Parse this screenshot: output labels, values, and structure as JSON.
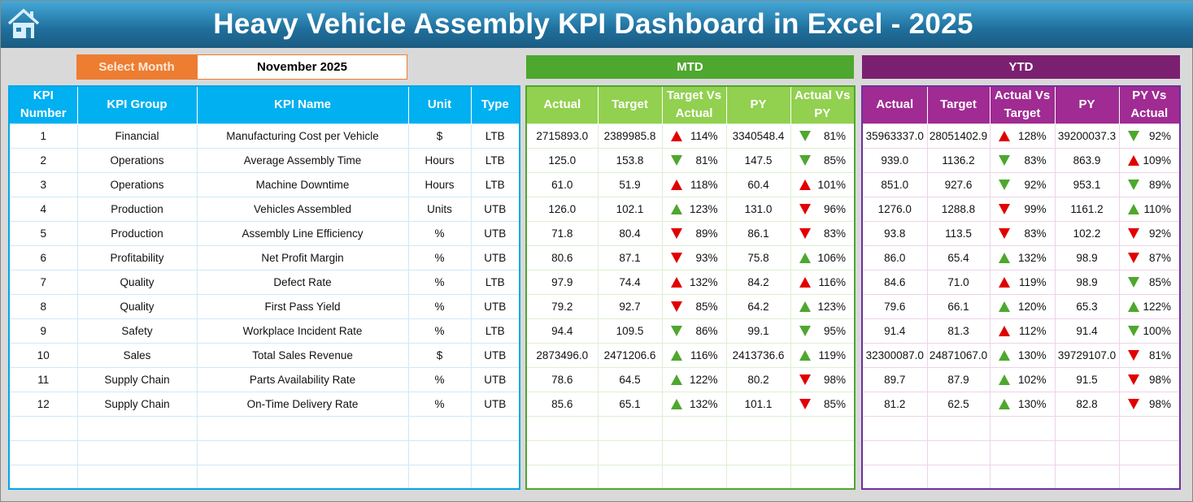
{
  "title": "Heavy Vehicle Assembly KPI Dashboard in Excel - 2025",
  "select_month_label": "Select Month",
  "selected_month": "November 2025",
  "mtd_label": "MTD",
  "ytd_label": "YTD",
  "colors": {
    "up_down_good": "#4ea72e",
    "bad": "#e00000",
    "header_blue": "#00b0f0",
    "mtd_green": "#4ea72e",
    "ytd_purple": "#7b2070"
  },
  "left_headers": [
    "KPI Number",
    "KPI Group",
    "KPI Name",
    "Unit",
    "Type"
  ],
  "mtd_headers": [
    "Actual",
    "Target",
    "Target Vs Actual",
    "PY",
    "Actual Vs PY"
  ],
  "ytd_headers": [
    "Actual",
    "Target",
    "Actual Vs Target",
    "PY",
    "PY Vs Actual"
  ],
  "rows": [
    {
      "num": "1",
      "group": "Financial",
      "name": "Manufacturing Cost per Vehicle",
      "unit": "$",
      "type": "LTB",
      "mtd": {
        "actual": "2715893.0",
        "target": "2389985.8",
        "tva": {
          "pct": "114%",
          "dir": "up",
          "color": "red"
        },
        "py": "3340548.4",
        "avp": {
          "pct": "81%",
          "dir": "down",
          "color": "green"
        }
      },
      "ytd": {
        "actual": "35963337.0",
        "target": "28051402.9",
        "avt": {
          "pct": "128%",
          "dir": "up",
          "color": "red"
        },
        "py": "39200037.3",
        "pva": {
          "pct": "92%",
          "dir": "down",
          "color": "green"
        }
      }
    },
    {
      "num": "2",
      "group": "Operations",
      "name": "Average Assembly Time",
      "unit": "Hours",
      "type": "LTB",
      "mtd": {
        "actual": "125.0",
        "target": "153.8",
        "tva": {
          "pct": "81%",
          "dir": "down",
          "color": "green"
        },
        "py": "147.5",
        "avp": {
          "pct": "85%",
          "dir": "down",
          "color": "green"
        }
      },
      "ytd": {
        "actual": "939.0",
        "target": "1136.2",
        "avt": {
          "pct": "83%",
          "dir": "down",
          "color": "green"
        },
        "py": "863.9",
        "pva": {
          "pct": "109%",
          "dir": "up",
          "color": "red"
        }
      }
    },
    {
      "num": "3",
      "group": "Operations",
      "name": "Machine Downtime",
      "unit": "Hours",
      "type": "LTB",
      "mtd": {
        "actual": "61.0",
        "target": "51.9",
        "tva": {
          "pct": "118%",
          "dir": "up",
          "color": "red"
        },
        "py": "60.4",
        "avp": {
          "pct": "101%",
          "dir": "up",
          "color": "red"
        }
      },
      "ytd": {
        "actual": "851.0",
        "target": "927.6",
        "avt": {
          "pct": "92%",
          "dir": "down",
          "color": "green"
        },
        "py": "953.1",
        "pva": {
          "pct": "89%",
          "dir": "down",
          "color": "green"
        }
      }
    },
    {
      "num": "4",
      "group": "Production",
      "name": "Vehicles Assembled",
      "unit": "Units",
      "type": "UTB",
      "mtd": {
        "actual": "126.0",
        "target": "102.1",
        "tva": {
          "pct": "123%",
          "dir": "up",
          "color": "green"
        },
        "py": "131.0",
        "avp": {
          "pct": "96%",
          "dir": "down",
          "color": "red"
        }
      },
      "ytd": {
        "actual": "1276.0",
        "target": "1288.8",
        "avt": {
          "pct": "99%",
          "dir": "down",
          "color": "red"
        },
        "py": "1161.2",
        "pva": {
          "pct": "110%",
          "dir": "up",
          "color": "green"
        }
      }
    },
    {
      "num": "5",
      "group": "Production",
      "name": "Assembly Line Efficiency",
      "unit": "%",
      "type": "UTB",
      "mtd": {
        "actual": "71.8",
        "target": "80.4",
        "tva": {
          "pct": "89%",
          "dir": "down",
          "color": "red"
        },
        "py": "86.1",
        "avp": {
          "pct": "83%",
          "dir": "down",
          "color": "red"
        }
      },
      "ytd": {
        "actual": "93.8",
        "target": "113.5",
        "avt": {
          "pct": "83%",
          "dir": "down",
          "color": "red"
        },
        "py": "102.2",
        "pva": {
          "pct": "92%",
          "dir": "down",
          "color": "red"
        }
      }
    },
    {
      "num": "6",
      "group": "Profitability",
      "name": "Net Profit Margin",
      "unit": "%",
      "type": "UTB",
      "mtd": {
        "actual": "80.6",
        "target": "87.1",
        "tva": {
          "pct": "93%",
          "dir": "down",
          "color": "red"
        },
        "py": "75.8",
        "avp": {
          "pct": "106%",
          "dir": "up",
          "color": "green"
        }
      },
      "ytd": {
        "actual": "86.0",
        "target": "65.4",
        "avt": {
          "pct": "132%",
          "dir": "up",
          "color": "green"
        },
        "py": "98.9",
        "pva": {
          "pct": "87%",
          "dir": "down",
          "color": "red"
        }
      }
    },
    {
      "num": "7",
      "group": "Quality",
      "name": "Defect Rate",
      "unit": "%",
      "type": "LTB",
      "mtd": {
        "actual": "97.9",
        "target": "74.4",
        "tva": {
          "pct": "132%",
          "dir": "up",
          "color": "red"
        },
        "py": "84.2",
        "avp": {
          "pct": "116%",
          "dir": "up",
          "color": "red"
        }
      },
      "ytd": {
        "actual": "84.6",
        "target": "71.0",
        "avt": {
          "pct": "119%",
          "dir": "up",
          "color": "red"
        },
        "py": "98.9",
        "pva": {
          "pct": "85%",
          "dir": "down",
          "color": "green"
        }
      }
    },
    {
      "num": "8",
      "group": "Quality",
      "name": "First Pass Yield",
      "unit": "%",
      "type": "UTB",
      "mtd": {
        "actual": "79.2",
        "target": "92.7",
        "tva": {
          "pct": "85%",
          "dir": "down",
          "color": "red"
        },
        "py": "64.2",
        "avp": {
          "pct": "123%",
          "dir": "up",
          "color": "green"
        }
      },
      "ytd": {
        "actual": "79.6",
        "target": "66.1",
        "avt": {
          "pct": "120%",
          "dir": "up",
          "color": "green"
        },
        "py": "65.3",
        "pva": {
          "pct": "122%",
          "dir": "up",
          "color": "green"
        }
      }
    },
    {
      "num": "9",
      "group": "Safety",
      "name": "Workplace Incident Rate",
      "unit": "%",
      "type": "LTB",
      "mtd": {
        "actual": "94.4",
        "target": "109.5",
        "tva": {
          "pct": "86%",
          "dir": "down",
          "color": "green"
        },
        "py": "99.1",
        "avp": {
          "pct": "95%",
          "dir": "down",
          "color": "green"
        }
      },
      "ytd": {
        "actual": "91.4",
        "target": "81.3",
        "avt": {
          "pct": "112%",
          "dir": "up",
          "color": "red"
        },
        "py": "91.4",
        "pva": {
          "pct": "100%",
          "dir": "down",
          "color": "green"
        }
      }
    },
    {
      "num": "10",
      "group": "Sales",
      "name": "Total Sales Revenue",
      "unit": "$",
      "type": "UTB",
      "mtd": {
        "actual": "2873496.0",
        "target": "2471206.6",
        "tva": {
          "pct": "116%",
          "dir": "up",
          "color": "green"
        },
        "py": "2413736.6",
        "avp": {
          "pct": "119%",
          "dir": "up",
          "color": "green"
        }
      },
      "ytd": {
        "actual": "32300087.0",
        "target": "24871067.0",
        "avt": {
          "pct": "130%",
          "dir": "up",
          "color": "green"
        },
        "py": "39729107.0",
        "pva": {
          "pct": "81%",
          "dir": "down",
          "color": "red"
        }
      }
    },
    {
      "num": "11",
      "group": "Supply Chain",
      "name": "Parts Availability Rate",
      "unit": "%",
      "type": "UTB",
      "mtd": {
        "actual": "78.6",
        "target": "64.5",
        "tva": {
          "pct": "122%",
          "dir": "up",
          "color": "green"
        },
        "py": "80.2",
        "avp": {
          "pct": "98%",
          "dir": "down",
          "color": "red"
        }
      },
      "ytd": {
        "actual": "89.7",
        "target": "87.9",
        "avt": {
          "pct": "102%",
          "dir": "up",
          "color": "green"
        },
        "py": "91.5",
        "pva": {
          "pct": "98%",
          "dir": "down",
          "color": "red"
        }
      }
    },
    {
      "num": "12",
      "group": "Supply Chain",
      "name": "On-Time Delivery Rate",
      "unit": "%",
      "type": "UTB",
      "mtd": {
        "actual": "85.6",
        "target": "65.1",
        "tva": {
          "pct": "132%",
          "dir": "up",
          "color": "green"
        },
        "py": "101.1",
        "avp": {
          "pct": "85%",
          "dir": "down",
          "color": "red"
        }
      },
      "ytd": {
        "actual": "81.2",
        "target": "62.5",
        "avt": {
          "pct": "130%",
          "dir": "up",
          "color": "green"
        },
        "py": "82.8",
        "pva": {
          "pct": "98%",
          "dir": "down",
          "color": "red"
        }
      }
    }
  ]
}
